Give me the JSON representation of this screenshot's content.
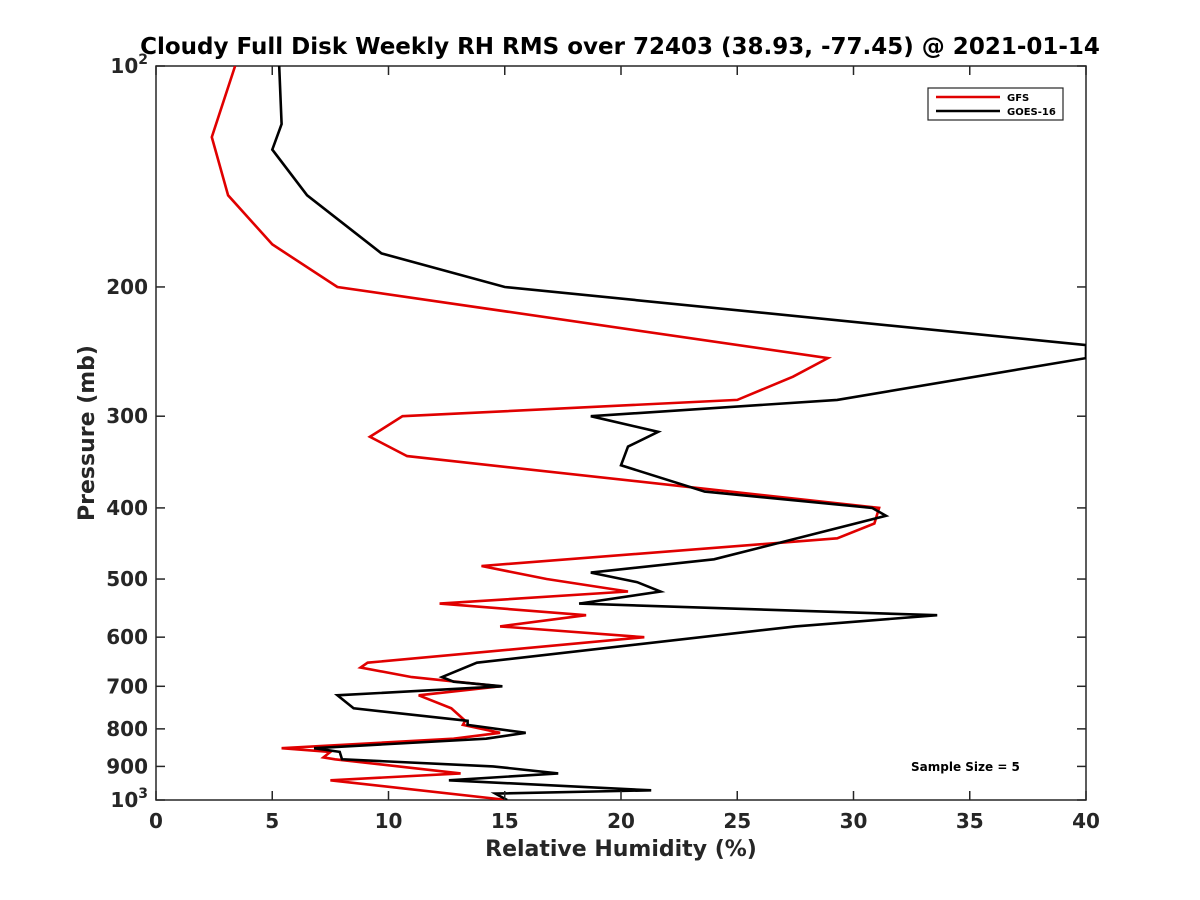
{
  "chart_data": {
    "type": "line",
    "title": "Cloudy Full Disk Weekly RH RMS over 72403 (38.93, -77.45) @ 2021-01-14",
    "xlabel": "Relative Humidity (%)",
    "ylabel": "Pressure (mb)",
    "xlim": [
      0,
      40
    ],
    "ylim": [
      100,
      1000
    ],
    "y_scale": "log",
    "y_reversed": true,
    "grid": false,
    "legend_position": "top-right",
    "annotation": "Sample Size = 5",
    "x_ticks": [
      "0",
      "5",
      "10",
      "15",
      "20",
      "25",
      "30",
      "35",
      "40"
    ],
    "y_ticks": [
      {
        "value": 100,
        "label": "10",
        "exp": "2"
      },
      {
        "value": 200,
        "label": "200",
        "exp": ""
      },
      {
        "value": 300,
        "label": "300",
        "exp": ""
      },
      {
        "value": 400,
        "label": "400",
        "exp": ""
      },
      {
        "value": 500,
        "label": "500",
        "exp": ""
      },
      {
        "value": 600,
        "label": "600",
        "exp": ""
      },
      {
        "value": 700,
        "label": "700",
        "exp": ""
      },
      {
        "value": 800,
        "label": "800",
        "exp": ""
      },
      {
        "value": 900,
        "label": "900",
        "exp": ""
      },
      {
        "value": 1000,
        "label": "10",
        "exp": "3"
      }
    ],
    "series": [
      {
        "name": "GFS",
        "color": "#e00000",
        "points": [
          [
            3.4,
            100
          ],
          [
            2.4,
            125
          ],
          [
            3.1,
            150
          ],
          [
            5.0,
            175
          ],
          [
            7.8,
            200
          ],
          [
            28.9,
            250
          ],
          [
            27.4,
            265
          ],
          [
            25.0,
            285
          ],
          [
            10.6,
            300
          ],
          [
            9.2,
            320
          ],
          [
            10.8,
            340
          ],
          [
            31.1,
            400
          ],
          [
            30.9,
            420
          ],
          [
            29.3,
            440
          ],
          [
            14.0,
            480
          ],
          [
            16.8,
            500
          ],
          [
            20.3,
            520
          ],
          [
            12.2,
            540
          ],
          [
            18.5,
            560
          ],
          [
            14.8,
            580
          ],
          [
            21.0,
            600
          ],
          [
            9.1,
            650
          ],
          [
            8.8,
            660
          ],
          [
            11.0,
            680
          ],
          [
            14.8,
            700
          ],
          [
            11.3,
            720
          ],
          [
            12.7,
            750
          ],
          [
            13.3,
            780
          ],
          [
            13.2,
            790
          ],
          [
            14.8,
            810
          ],
          [
            12.8,
            825
          ],
          [
            5.4,
            850
          ],
          [
            7.5,
            860
          ],
          [
            7.2,
            875
          ],
          [
            7.7,
            880
          ],
          [
            13.1,
            920
          ],
          [
            7.5,
            940
          ],
          [
            15.1,
            1000
          ]
        ]
      },
      {
        "name": "GOES-16",
        "color": "#000000",
        "points": [
          [
            5.3,
            100
          ],
          [
            5.4,
            120
          ],
          [
            5.0,
            130
          ],
          [
            6.5,
            150
          ],
          [
            9.7,
            180
          ],
          [
            15.0,
            200
          ],
          [
            40.0,
            240
          ],
          [
            40.0,
            250
          ],
          [
            29.3,
            285
          ],
          [
            18.7,
            300
          ],
          [
            21.6,
            315
          ],
          [
            20.3,
            330
          ],
          [
            20.0,
            350
          ],
          [
            23.6,
            380
          ],
          [
            30.8,
            400
          ],
          [
            31.4,
            410
          ],
          [
            24.0,
            470
          ],
          [
            18.7,
            490
          ],
          [
            20.7,
            505
          ],
          [
            21.7,
            520
          ],
          [
            18.2,
            540
          ],
          [
            33.6,
            560
          ],
          [
            27.5,
            580
          ],
          [
            13.8,
            650
          ],
          [
            12.3,
            680
          ],
          [
            12.8,
            690
          ],
          [
            14.9,
            700
          ],
          [
            7.8,
            720
          ],
          [
            8.5,
            750
          ],
          [
            13.4,
            780
          ],
          [
            13.4,
            790
          ],
          [
            15.9,
            810
          ],
          [
            14.2,
            825
          ],
          [
            6.8,
            850
          ],
          [
            7.9,
            860
          ],
          [
            8.0,
            880
          ],
          [
            14.5,
            900
          ],
          [
            17.3,
            920
          ],
          [
            12.6,
            940
          ],
          [
            21.3,
            970
          ],
          [
            14.6,
            980
          ],
          [
            15.1,
            1000
          ]
        ]
      }
    ]
  }
}
